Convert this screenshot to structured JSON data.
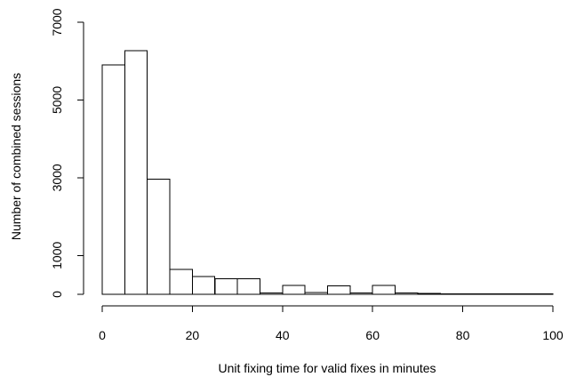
{
  "chart_data": {
    "type": "bar",
    "subtype": "histogram",
    "title": "",
    "xlabel": "Unit fixing time for valid fixes in minutes",
    "ylabel": "Number of combined sessions",
    "bin_width": 5,
    "bin_edges": [
      0,
      5,
      10,
      15,
      20,
      25,
      30,
      35,
      40,
      45,
      50,
      55,
      60,
      65,
      70,
      75,
      80,
      85,
      90,
      95,
      100
    ],
    "values": [
      5900,
      6270,
      2960,
      640,
      460,
      400,
      400,
      40,
      230,
      50,
      220,
      40,
      230,
      40,
      20,
      10,
      10,
      10,
      10,
      10
    ],
    "xlim": [
      0,
      100
    ],
    "ylim": [
      0,
      7000
    ],
    "x_ticks": [
      0,
      20,
      40,
      60,
      80,
      100
    ],
    "y_ticks": [
      0,
      1000,
      3000,
      5000,
      7000
    ],
    "grid": false,
    "legend": "none"
  }
}
